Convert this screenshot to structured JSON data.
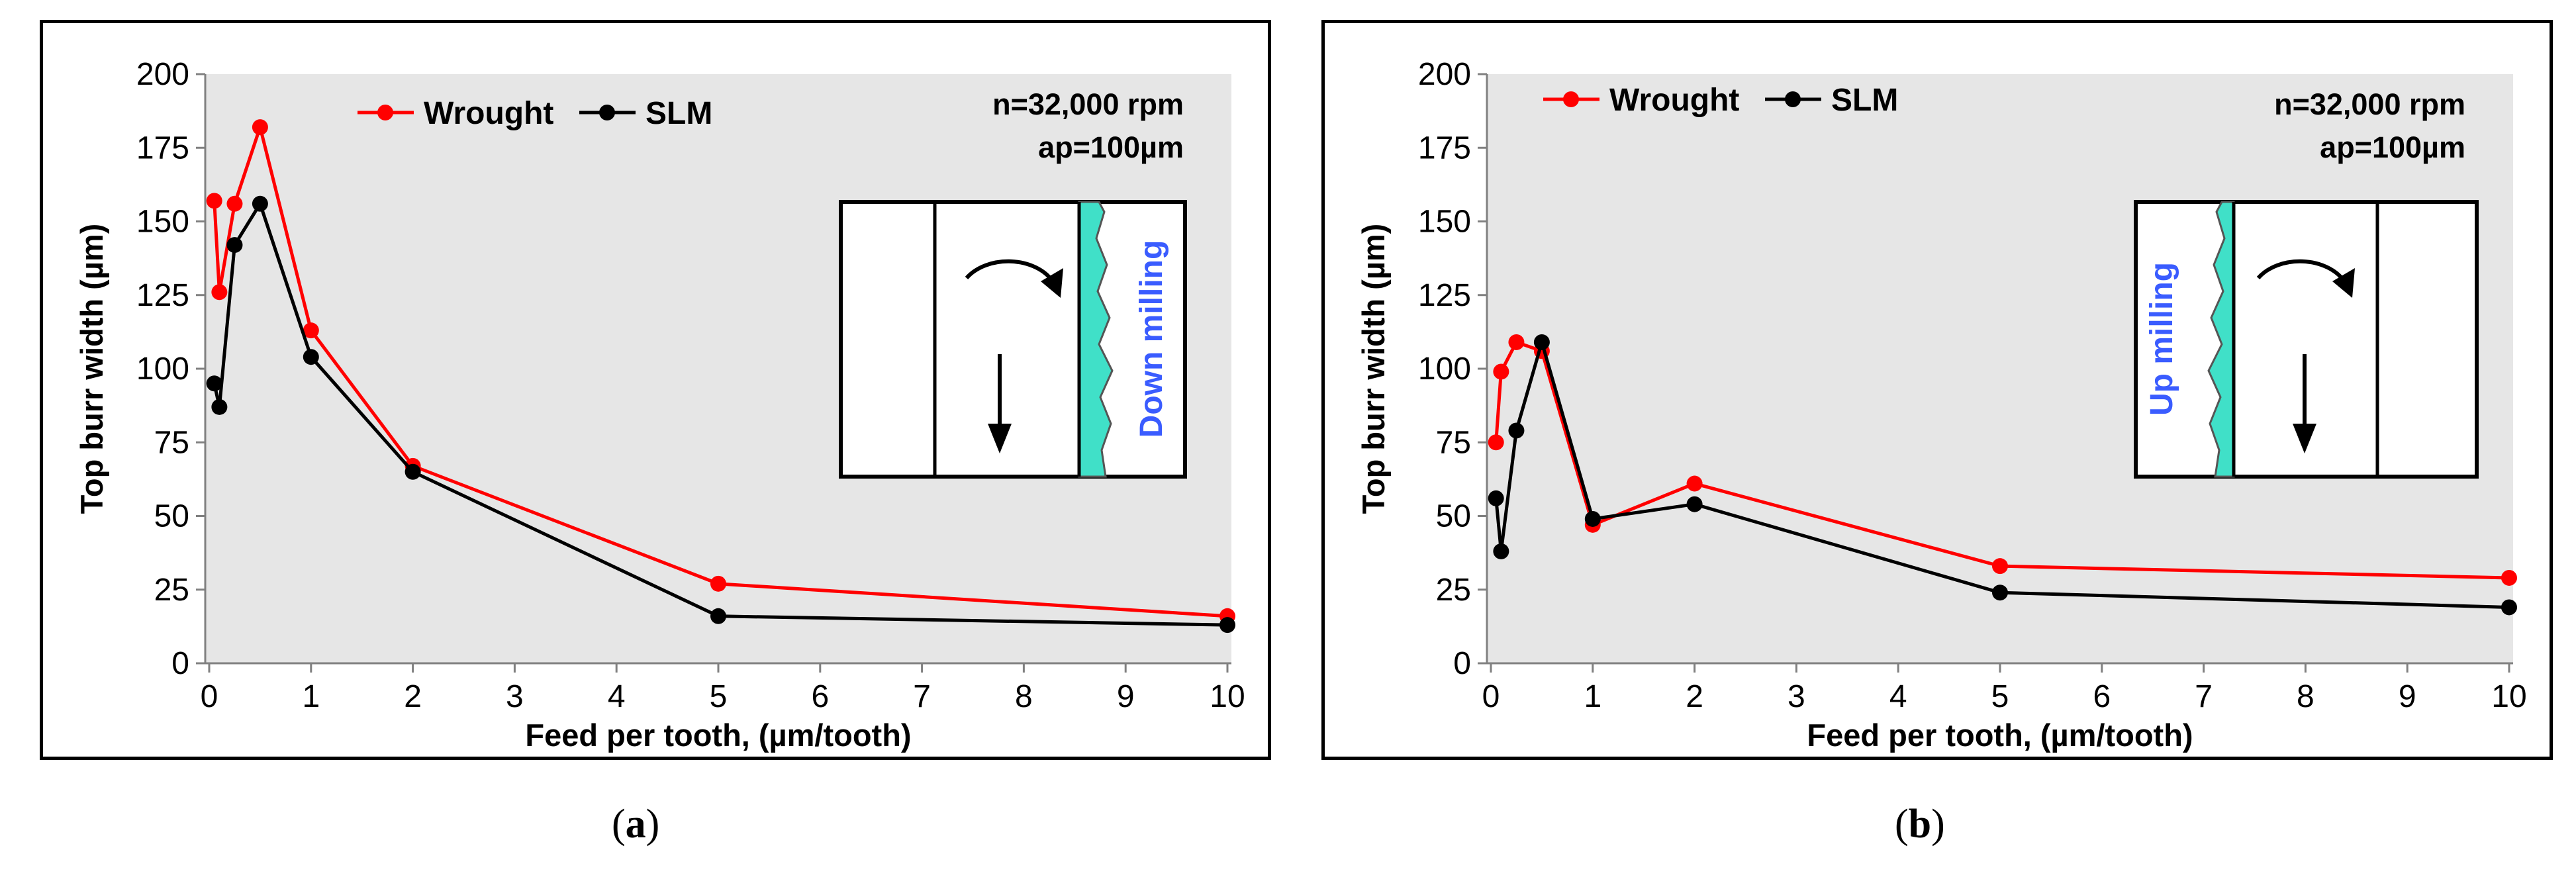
{
  "chart_data": [
    {
      "panel": "a",
      "type": "line",
      "x_ticks": [
        "0",
        "1",
        "2",
        "3",
        "4",
        "5",
        "6",
        "7",
        "8",
        "9",
        "10"
      ],
      "y_ticks": [
        "0",
        "25",
        "50",
        "75",
        "100",
        "125",
        "150",
        "175",
        "200"
      ],
      "xlabel": "Feed per tooth,  (µm/tooth)",
      "ylabel": "Top burr width (µm)",
      "xlim": [
        0,
        10
      ],
      "ylim": [
        0,
        200
      ],
      "series": [
        {
          "name": "Wrought",
          "color": "#ff0000",
          "x": [
            0.05,
            0.1,
            0.25,
            0.5,
            1,
            2,
            5,
            10
          ],
          "y": [
            157,
            126,
            156,
            182,
            113,
            67,
            27,
            16
          ]
        },
        {
          "name": "SLM",
          "color": "#000000",
          "x": [
            0.05,
            0.1,
            0.25,
            0.5,
            1,
            2,
            5,
            10
          ],
          "y": [
            95,
            87,
            142,
            156,
            104,
            65,
            16,
            13
          ]
        }
      ],
      "annotations": [
        "n=32,000 rpm",
        "ap=100µm"
      ],
      "inset_label": "Down milling",
      "caption": "a"
    },
    {
      "panel": "b",
      "type": "line",
      "x_ticks": [
        "0",
        "1",
        "2",
        "3",
        "4",
        "5",
        "6",
        "7",
        "8",
        "9",
        "10"
      ],
      "y_ticks": [
        "0",
        "25",
        "50",
        "75",
        "100",
        "125",
        "150",
        "175",
        "200"
      ],
      "xlabel": "Feed per tooth,  (µm/tooth)",
      "ylabel": "Top burr width (µm)",
      "xlim": [
        0,
        10
      ],
      "ylim": [
        0,
        200
      ],
      "series": [
        {
          "name": "Wrought",
          "color": "#ff0000",
          "x": [
            0.05,
            0.1,
            0.25,
            0.5,
            1,
            2,
            5,
            10
          ],
          "y": [
            75,
            99,
            109,
            106,
            47,
            61,
            33,
            29
          ]
        },
        {
          "name": "SLM",
          "color": "#000000",
          "x": [
            0.05,
            0.1,
            0.25,
            0.5,
            1,
            2,
            5,
            10
          ],
          "y": [
            56,
            38,
            79,
            109,
            49,
            54,
            24,
            19
          ]
        }
      ],
      "annotations": [
        "n=32,000 rpm",
        "ap=100µm"
      ],
      "inset_label": "Up milling",
      "caption": "b"
    }
  ],
  "style": {
    "plot_background": "#e6e6e6",
    "inset_fill": "#40e0c8",
    "milling_text": "#3a5cff"
  }
}
